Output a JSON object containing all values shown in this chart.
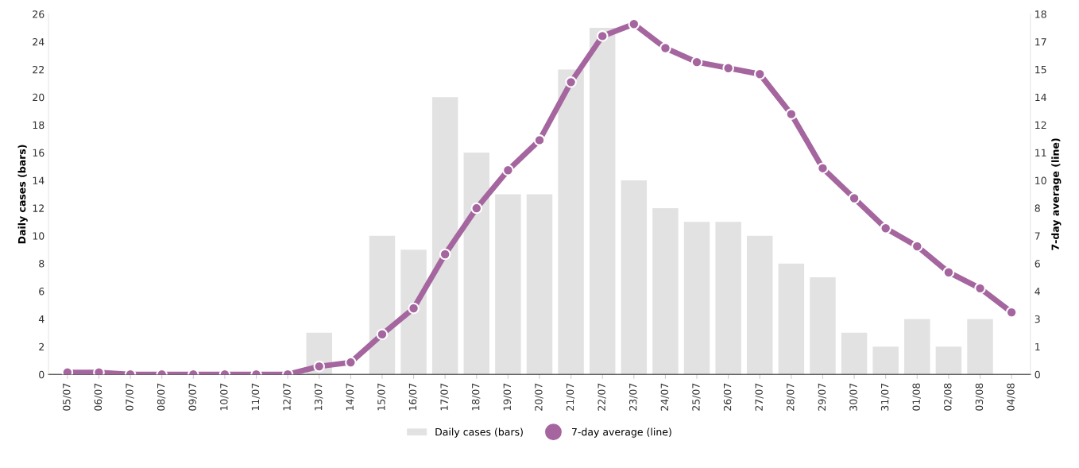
{
  "chart_data": {
    "type": "bar",
    "categories": [
      "05/07",
      "06/07",
      "07/07",
      "08/07",
      "09/07",
      "10/07",
      "11/07",
      "12/07",
      "13/07",
      "14/07",
      "15/07",
      "16/07",
      "17/07",
      "18/07",
      "19/07",
      "20/07",
      "21/07",
      "22/07",
      "23/07",
      "24/07",
      "25/07",
      "26/07",
      "27/07",
      "28/07",
      "29/07",
      "30/07",
      "31/07",
      "01/08",
      "02/08",
      "03/08",
      "04/08"
    ],
    "series": [
      {
        "name": "Daily cases (bars)",
        "color": "#e2e2e2",
        "values": [
          0,
          0,
          0,
          0,
          0,
          0,
          0,
          0,
          3,
          0,
          10,
          9,
          20,
          16,
          13,
          13,
          22,
          25,
          14,
          12,
          11,
          11,
          10,
          8,
          7,
          3,
          2,
          4,
          2,
          4,
          0
        ]
      },
      {
        "name": "7-day average (line)",
        "type": "line",
        "axis": "y2",
        "color": "#a5669f",
        "values": [
          0.1,
          0.1,
          0,
          0,
          0,
          0,
          0,
          0,
          0.4,
          0.6,
          2.0,
          3.3,
          6.0,
          8.3,
          10.2,
          11.7,
          14.6,
          16.9,
          17.5,
          16.3,
          15.6,
          15.3,
          15.0,
          13.0,
          10.3,
          8.8,
          7.3,
          6.4,
          5.1,
          4.3,
          3.1
        ]
      }
    ],
    "ylabel": "Daily cases (bars)",
    "y2label": "7-day average (line)",
    "ylim": [
      0,
      26
    ],
    "yticks": [
      0,
      2,
      4,
      6,
      8,
      10,
      12,
      14,
      16,
      18,
      20,
      22,
      24,
      26
    ],
    "y2lim": [
      0,
      18
    ],
    "y2ticks": [
      0,
      {
        "value": 1.385,
        "label": "1"
      },
      {
        "value": 2.769,
        "label": "3"
      },
      {
        "value": 4.154,
        "label": "4"
      },
      {
        "value": 5.538,
        "label": "6"
      },
      {
        "value": 6.923,
        "label": "7"
      },
      {
        "value": 8.308,
        "label": "8"
      },
      {
        "value": 9.692,
        "label": "10"
      },
      {
        "value": 11.077,
        "label": "11"
      },
      {
        "value": 12.462,
        "label": "12"
      },
      {
        "value": 13.846,
        "label": "14"
      },
      {
        "value": 15.231,
        "label": "15"
      },
      {
        "value": 16.615,
        "label": "17"
      },
      18
    ],
    "marker": "circle",
    "line_style": "solid",
    "grid": false,
    "legend": "bottom"
  }
}
